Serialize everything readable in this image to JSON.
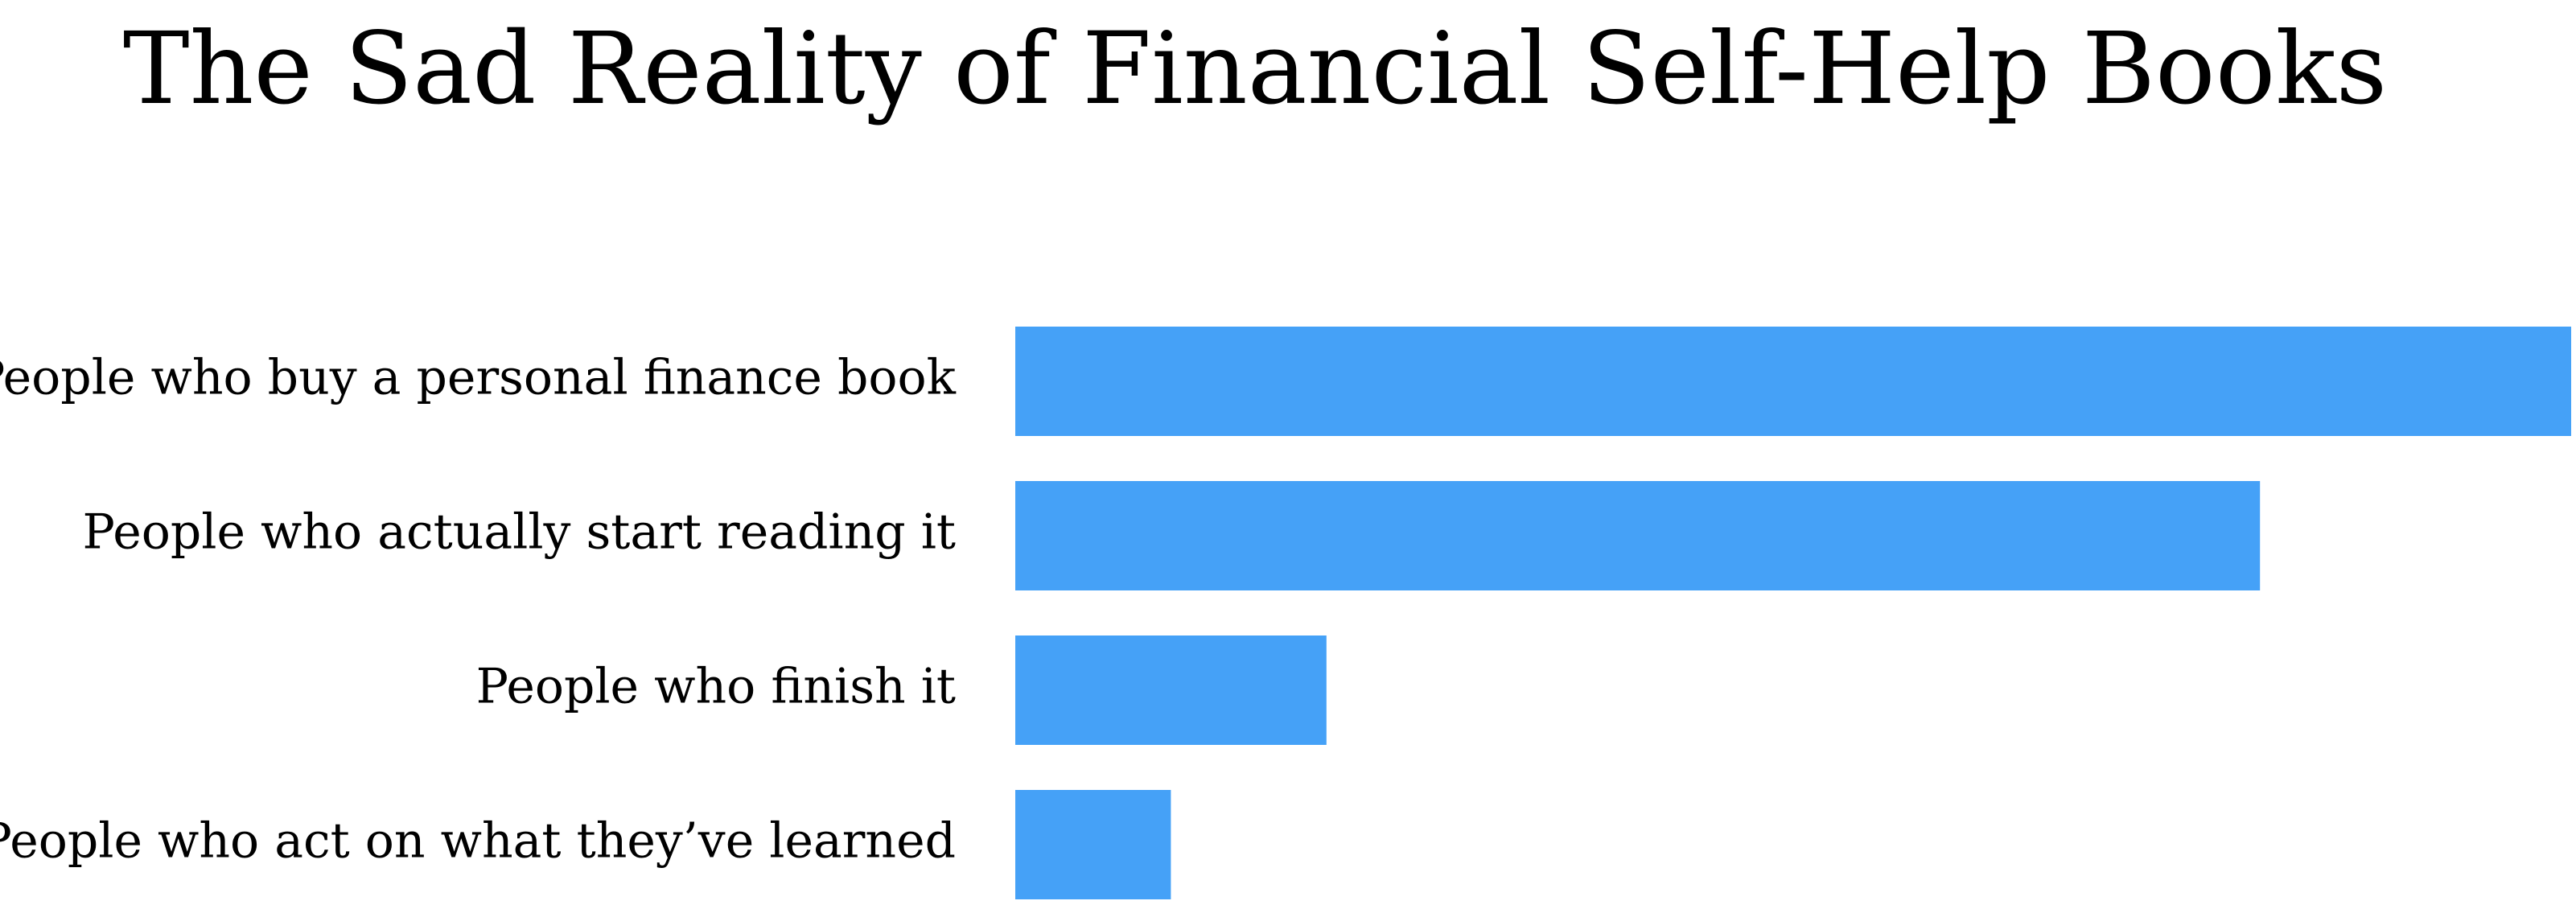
{
  "chart_data": {
    "type": "bar",
    "orientation": "horizontal",
    "title": "The Sad Reality of Financial Self-Help Books",
    "categories": [
      "People who buy a personal finance book",
      "People who actually start reading it",
      "People who finish it",
      "People who act on what they’ve learned"
    ],
    "values": [
      100,
      80,
      20,
      10
    ],
    "xlim": [
      0,
      100
    ],
    "xlabel": "",
    "ylabel": "",
    "grid": false,
    "legend": "none",
    "colors": {
      "bar": "#45A1F7",
      "text": "#000000",
      "background": "#FFFFFF"
    }
  }
}
